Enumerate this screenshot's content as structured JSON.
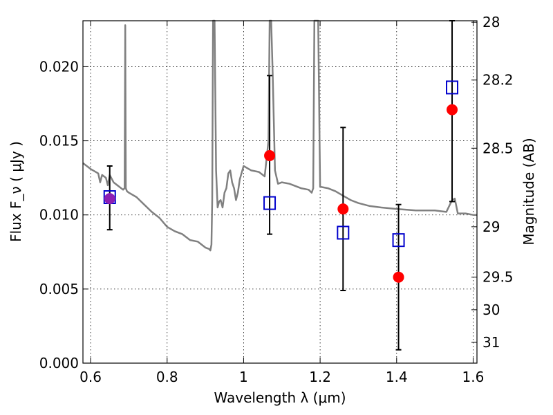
{
  "chart_data": {
    "type": "scatter",
    "xlabel": "Wavelength  λ (μm)",
    "ylabel": "Flux  F_ν  ( μJy )",
    "ylabel_right": "Magnitude (AB)",
    "xlim": [
      0.58,
      1.61
    ],
    "ylim": [
      0.0,
      0.0231
    ],
    "grid": true,
    "x_ticks": [
      0.6,
      0.8,
      1.0,
      1.2,
      1.4,
      1.6
    ],
    "x_tick_labels": [
      "0.6",
      "0.8",
      "1",
      "1.2",
      "1.4",
      "1.6"
    ],
    "y_ticks": [
      0.0,
      0.005,
      0.01,
      0.015,
      0.02
    ],
    "y_tick_labels": [
      "0.000",
      "0.005",
      "0.010",
      "0.015",
      "0.020"
    ],
    "right_ticks": [
      {
        "label": "28",
        "flux": 0.023
      },
      {
        "label": "28.2",
        "flux": 0.0191
      },
      {
        "label": "28.5",
        "flux": 0.0145
      },
      {
        "label": "29",
        "flux": 0.0092
      },
      {
        "label": "29.5",
        "flux": 0.0058
      },
      {
        "label": "30",
        "flux": 0.0036
      },
      {
        "label": "31",
        "flux": 0.0014
      }
    ],
    "colors": {
      "model": "#808080",
      "observed": "#ff0000",
      "model_box": "#0000cc",
      "overlap": "#8e1fb4",
      "errorbar": "#000000"
    },
    "series": [
      {
        "kind": "line",
        "x": [
          0.58,
          0.6,
          0.62,
          0.625,
          0.63,
          0.64,
          0.645,
          0.65,
          0.66,
          0.67,
          0.68,
          0.685,
          0.689,
          0.6905,
          0.692,
          0.695,
          0.7,
          0.72,
          0.74,
          0.76,
          0.78,
          0.8,
          0.82,
          0.84,
          0.86,
          0.88,
          0.9,
          0.91,
          0.913,
          0.916,
          0.918,
          0.92,
          0.924,
          0.928,
          0.932,
          0.936,
          0.94,
          0.945,
          0.95,
          0.955,
          0.96,
          0.965,
          0.97,
          0.975,
          0.98,
          0.985,
          0.99,
          1.0,
          1.02,
          1.04,
          1.055,
          1.065,
          1.068,
          1.072,
          1.076,
          1.082,
          1.09,
          1.1,
          1.12,
          1.15,
          1.17,
          1.178,
          1.182,
          1.185,
          1.19,
          1.195,
          1.2,
          1.22,
          1.24,
          1.26,
          1.28,
          1.3,
          1.33,
          1.36,
          1.4,
          1.45,
          1.5,
          1.53,
          1.545,
          1.552,
          1.56,
          1.58,
          1.6,
          1.61
        ],
        "y": [
          0.0135,
          0.0131,
          0.0128,
          0.0122,
          0.0127,
          0.0125,
          0.012,
          0.0127,
          0.0122,
          0.012,
          0.0118,
          0.0117,
          0.0118,
          0.0228,
          0.0118,
          0.0116,
          0.0115,
          0.0112,
          0.0107,
          0.0102,
          0.0098,
          0.0092,
          0.0089,
          0.0087,
          0.0083,
          0.0082,
          0.0078,
          0.0077,
          0.0076,
          0.008,
          0.011,
          0.0231,
          0.0231,
          0.013,
          0.0105,
          0.0109,
          0.011,
          0.0105,
          0.0115,
          0.0118,
          0.0128,
          0.013,
          0.0122,
          0.0118,
          0.011,
          0.0115,
          0.0124,
          0.0133,
          0.013,
          0.0129,
          0.0126,
          0.015,
          0.0231,
          0.0231,
          0.0195,
          0.013,
          0.0121,
          0.0122,
          0.0121,
          0.0118,
          0.0117,
          0.0115,
          0.0118,
          0.0231,
          0.0231,
          0.0231,
          0.0119,
          0.0118,
          0.0116,
          0.0113,
          0.011,
          0.0108,
          0.0106,
          0.0105,
          0.0104,
          0.0103,
          0.0103,
          0.0102,
          0.011,
          0.0111,
          0.0101,
          0.0101,
          0.01,
          0.01
        ]
      },
      {
        "kind": "observed",
        "x": [
          0.65,
          1.068,
          1.26,
          1.405,
          1.545
        ],
        "y": [
          0.0111,
          0.014,
          0.0104,
          0.0058,
          0.0171
        ],
        "yerr_low": [
          0.009,
          0.0087,
          0.0049,
          0.0009,
          0.0109
        ],
        "yerr_high": [
          0.0133,
          0.0194,
          0.0159,
          0.0107,
          0.0233
        ]
      },
      {
        "kind": "model_photometry",
        "x": [
          0.65,
          1.068,
          1.26,
          1.405,
          1.545
        ],
        "y": [
          0.0112,
          0.0108,
          0.0088,
          0.0083,
          0.0186
        ]
      }
    ]
  }
}
